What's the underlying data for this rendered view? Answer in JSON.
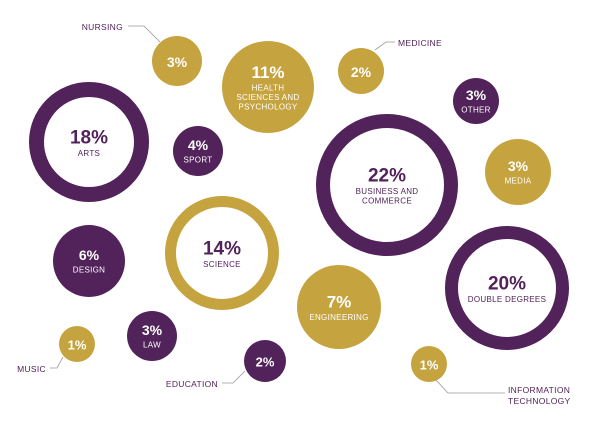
{
  "colors": {
    "purple": "#52225a",
    "gold": "#c5a33f",
    "white": "#ffffff",
    "leader_line": "#9a9a9a",
    "label_text": "#52225a"
  },
  "chart_data": {
    "type": "bubble",
    "unit": "%",
    "items": [
      {
        "id": "nursing",
        "value": 3,
        "percent_label": "3%",
        "category": "NURSING",
        "style": "gold-filled",
        "label_position": "outside"
      },
      {
        "id": "health",
        "value": 11,
        "percent_label": "11%",
        "category": "HEALTH SCIENCES AND PSYCHOLOGY",
        "category_lines": [
          "HEALTH",
          "SCIENCES AND",
          "PSYCHOLOGY"
        ],
        "style": "gold-filled",
        "label_position": "inside"
      },
      {
        "id": "medicine",
        "value": 2,
        "percent_label": "2%",
        "category": "MEDICINE",
        "style": "gold-filled",
        "label_position": "outside"
      },
      {
        "id": "arts",
        "value": 18,
        "percent_label": "18%",
        "category": "ARTS",
        "style": "purple-ring",
        "label_position": "inside"
      },
      {
        "id": "sport",
        "value": 4,
        "percent_label": "4%",
        "category": "SPORT",
        "style": "purple-filled",
        "label_position": "inside"
      },
      {
        "id": "other",
        "value": 3,
        "percent_label": "3%",
        "category": "OTHER",
        "style": "purple-filled",
        "label_position": "inside"
      },
      {
        "id": "business",
        "value": 22,
        "percent_label": "22%",
        "category": "BUSINESS AND COMMERCE",
        "category_lines": [
          "BUSINESS AND",
          "COMMERCE"
        ],
        "style": "purple-ring",
        "label_position": "inside"
      },
      {
        "id": "media",
        "value": 3,
        "percent_label": "3%",
        "category": "MEDIA",
        "style": "gold-filled",
        "label_position": "inside"
      },
      {
        "id": "science",
        "value": 14,
        "percent_label": "14%",
        "category": "SCIENCE",
        "style": "gold-ring",
        "label_position": "inside"
      },
      {
        "id": "design",
        "value": 6,
        "percent_label": "6%",
        "category": "DESIGN",
        "style": "purple-filled",
        "label_position": "inside"
      },
      {
        "id": "engineering",
        "value": 7,
        "percent_label": "7%",
        "category": "ENGINEERING",
        "style": "gold-filled",
        "label_position": "inside"
      },
      {
        "id": "double",
        "value": 20,
        "percent_label": "20%",
        "category": "DOUBLE DEGREES",
        "style": "purple-ring",
        "label_position": "inside"
      },
      {
        "id": "law",
        "value": 3,
        "percent_label": "3%",
        "category": "LAW",
        "style": "purple-filled",
        "label_position": "inside"
      },
      {
        "id": "music",
        "value": 1,
        "percent_label": "1%",
        "category": "MUSIC",
        "style": "gold-filled",
        "label_position": "outside"
      },
      {
        "id": "education",
        "value": 2,
        "percent_label": "2%",
        "category": "EDUCATION",
        "style": "purple-filled",
        "label_position": "outside"
      },
      {
        "id": "it",
        "value": 1,
        "percent_label": "1%",
        "category": "INFORMATION TECHNOLOGY",
        "category_lines": [
          "INFORMATION",
          "TECHNOLOGY"
        ],
        "style": "gold-filled",
        "label_position": "outside"
      }
    ]
  }
}
